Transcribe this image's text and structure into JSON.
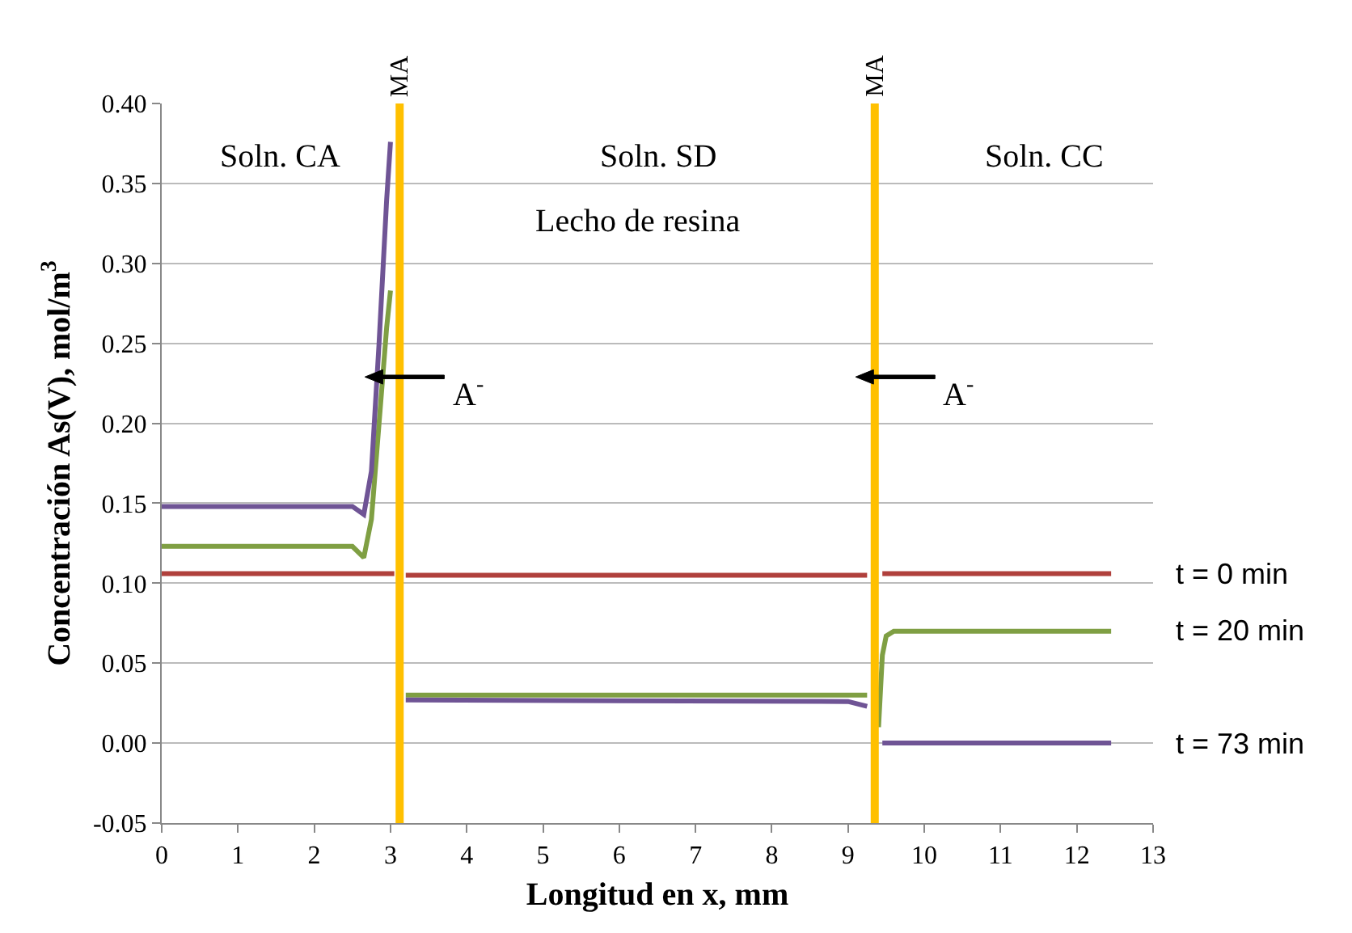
{
  "chart_data": {
    "type": "line",
    "xlabel": "Longitud en x, mm",
    "ylabel": "Concentración As(V), mol/m$^{3}$",
    "xlim": [
      0,
      13
    ],
    "xticks": [
      0,
      1,
      2,
      3,
      4,
      5,
      6,
      7,
      8,
      9,
      10,
      11,
      12,
      13
    ],
    "ylim": [
      -0.05,
      0.4
    ],
    "yticks": [
      {
        "value": -0.05,
        "label": "-0.05"
      },
      {
        "value": 0,
        "label": "0.00"
      },
      {
        "value": 0.05,
        "label": "0.05"
      },
      {
        "value": 0.1,
        "label": "0.10"
      },
      {
        "value": 0.15,
        "label": "0.15"
      },
      {
        "value": 0.2,
        "label": "0.20"
      },
      {
        "value": 0.25,
        "label": "0.25"
      },
      {
        "value": 0.3,
        "label": "0.30"
      },
      {
        "value": 0.35,
        "label": "0.35"
      },
      {
        "value": 0.4,
        "label": "0.40"
      }
    ],
    "grid": "y",
    "legend": false,
    "marker": "none",
    "line_style": "solid",
    "series": [
      {
        "name": "t = 0 min",
        "color": "#b0403c",
        "x": [
          0,
          3.05,
          3.1,
          3.2,
          9.25,
          9.3,
          9.45,
          12.45
        ],
        "values": [
          0.106,
          0.106,
          null,
          0.105,
          0.105,
          null,
          0.106,
          0.106
        ]
      },
      {
        "name": "t = 20 min",
        "color": "#7f9f43",
        "x": [
          0,
          2.5,
          2.65,
          2.75,
          2.85,
          2.95,
          3.0,
          3.1,
          3.2,
          9.25,
          9.3,
          9.4,
          9.45,
          9.5,
          9.6,
          12.45
        ],
        "values": [
          0.123,
          0.123,
          0.116,
          0.14,
          0.2,
          0.26,
          0.283,
          null,
          0.03,
          0.03,
          null,
          0.01,
          0.055,
          0.067,
          0.07,
          0.07
        ]
      },
      {
        "name": "t = 73 min",
        "color": "#6f5495",
        "x": [
          0,
          2.5,
          2.65,
          2.75,
          2.85,
          2.95,
          3.0,
          3.1,
          3.2,
          9.0,
          9.25,
          9.3,
          9.45,
          12.45
        ],
        "values": [
          0.148,
          0.148,
          0.143,
          0.17,
          0.25,
          0.34,
          0.376,
          null,
          0.027,
          0.026,
          0.023,
          null,
          0.0,
          0.0
        ]
      }
    ],
    "ref_lines": [
      {
        "axis": "x",
        "value": 3.12,
        "label": "MA",
        "color": "#ffc000"
      },
      {
        "axis": "x",
        "value": 9.35,
        "label": "MA",
        "color": "#ffc000"
      }
    ],
    "annotations": [
      "Soln. CA",
      "Soln. SD",
      "Soln. CC",
      "Lecho de resina",
      "A$^{-}$",
      "A$^{-}$"
    ]
  }
}
